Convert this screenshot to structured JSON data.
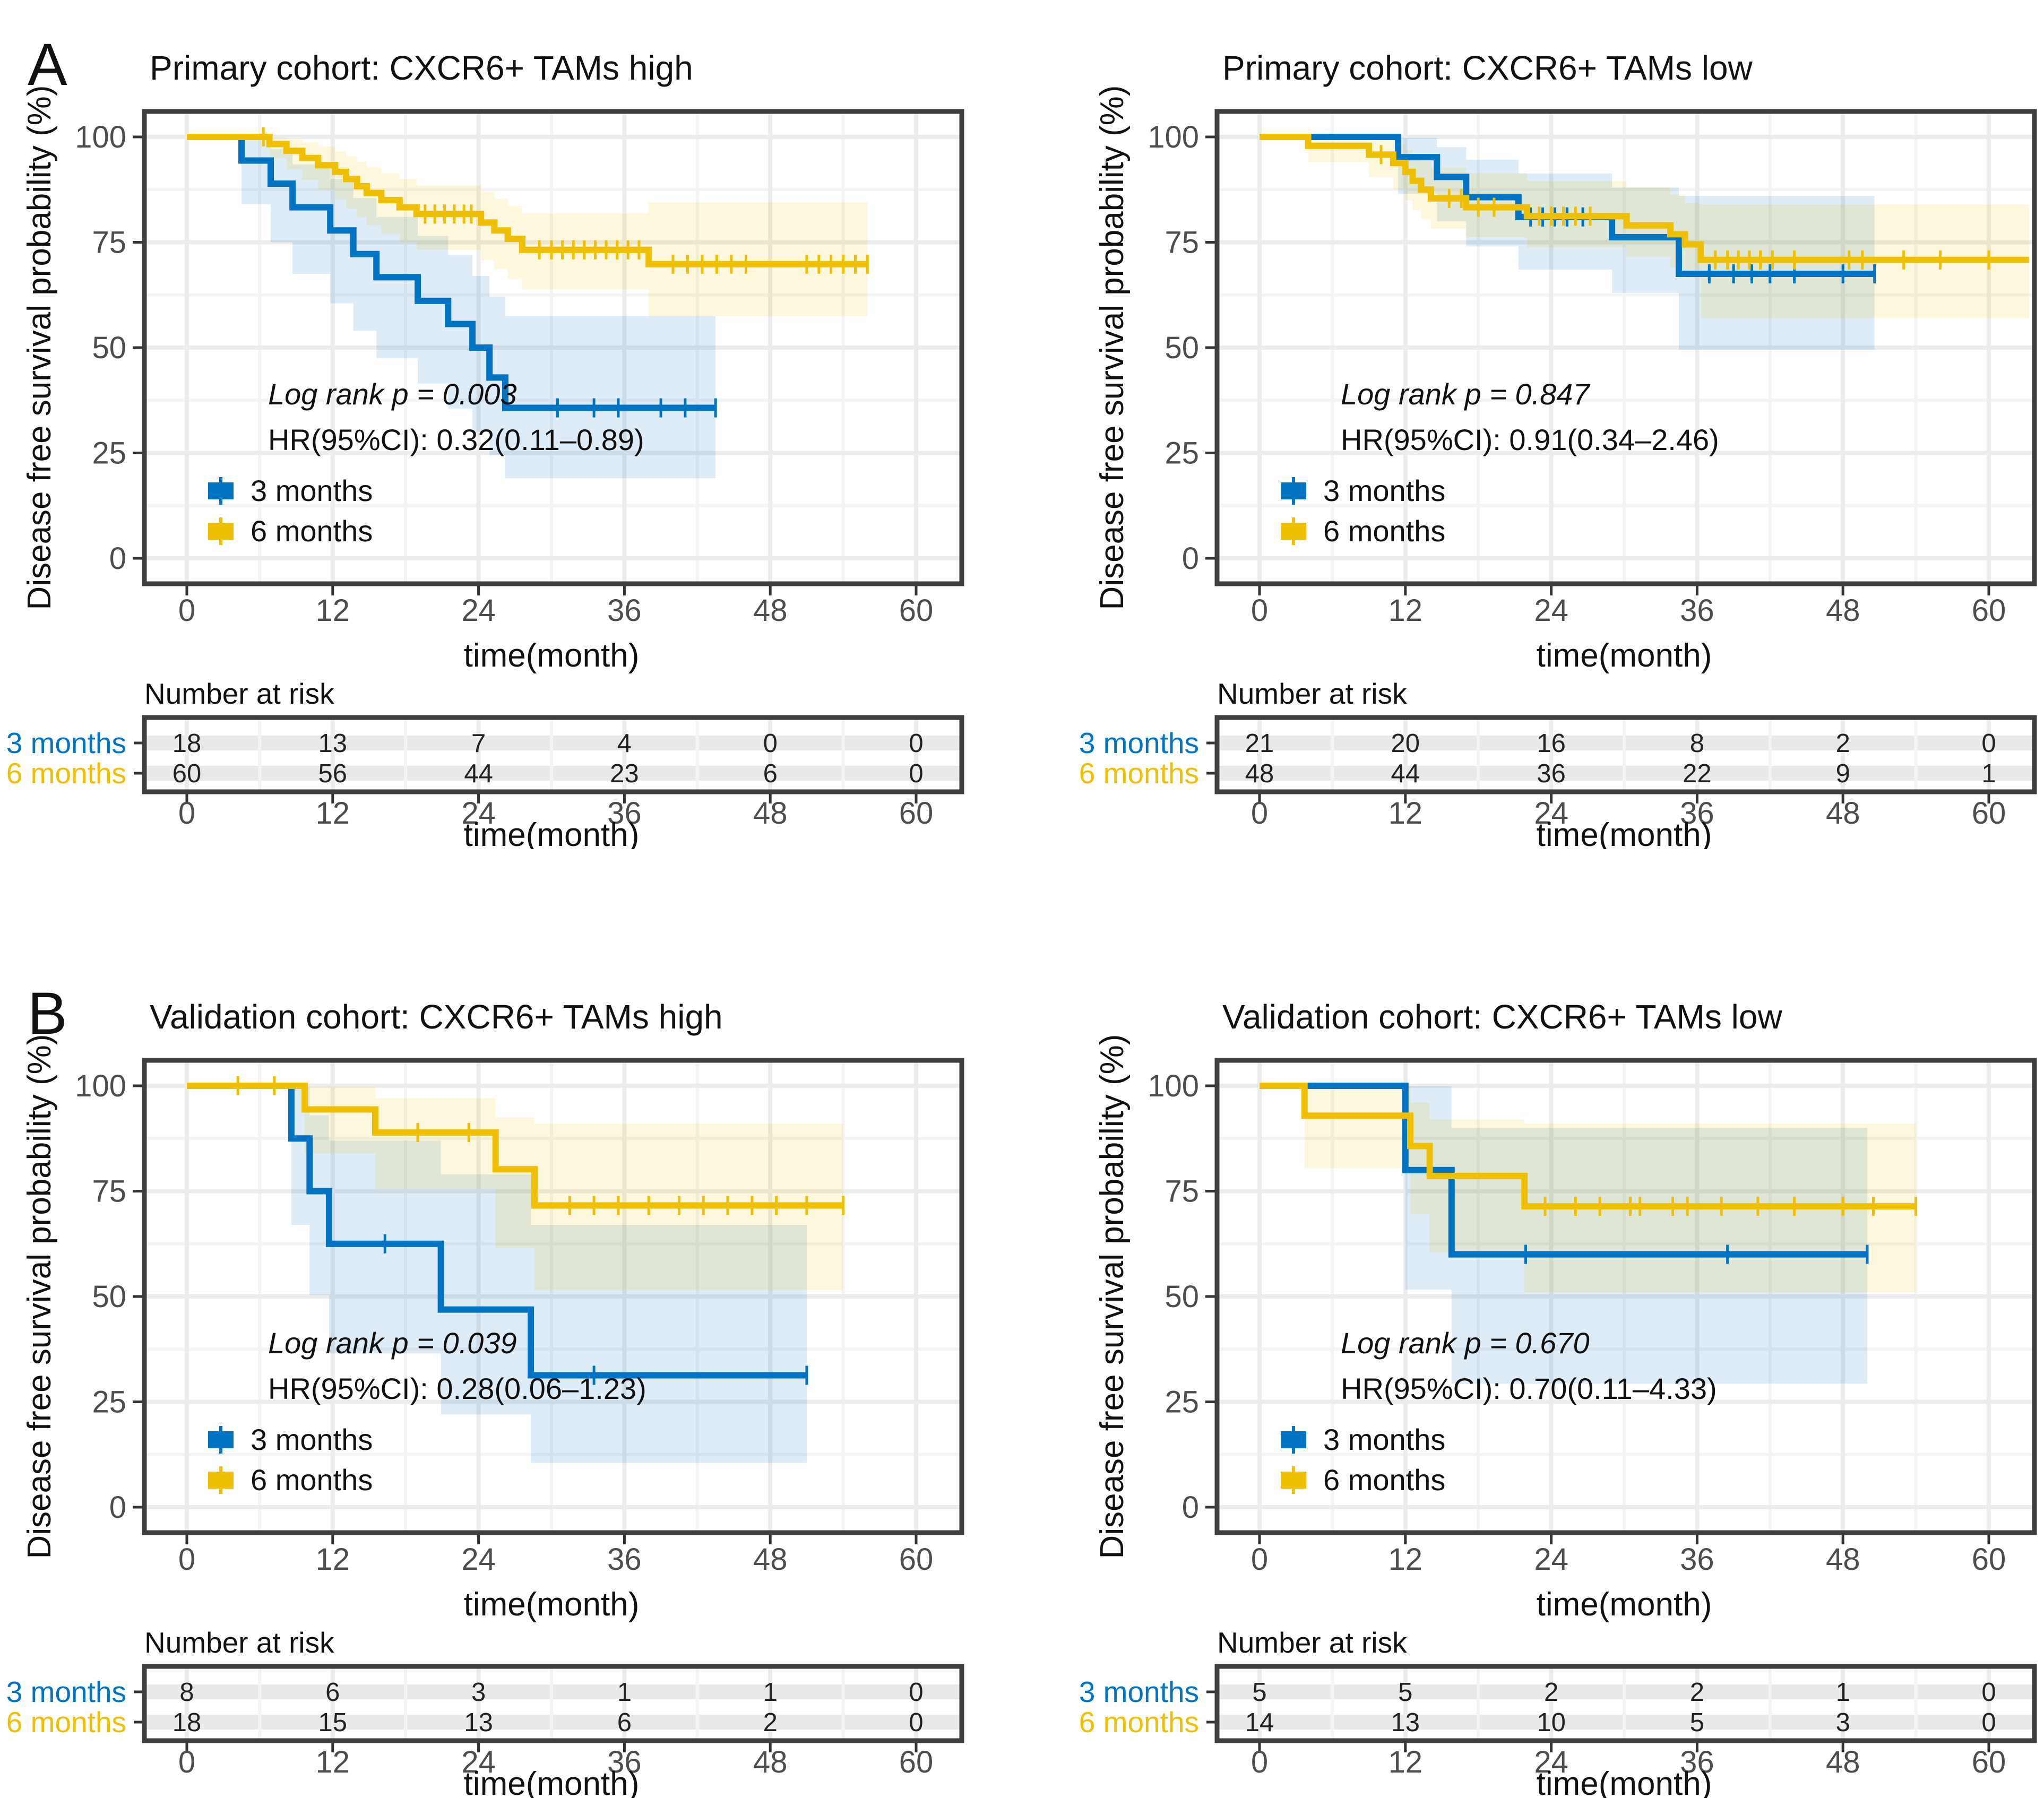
{
  "figure": {
    "ylabel": "Disease free survival probability (%)",
    "xlabel": "time(month)",
    "risk_header": "Number at risk",
    "x_ticks": [
      0,
      12,
      24,
      36,
      48,
      60
    ],
    "y_ticks": [
      0,
      25,
      50,
      75,
      100
    ],
    "colors": {
      "group_3_months": "#0073C2",
      "group_6_months": "#EFC000",
      "grid_major": "#ECECEC",
      "grid_minor": "#F4F4F4",
      "panel_border": "#3F3F3F",
      "tick_mark": "#333333",
      "tick_text": "#4d4d4d",
      "risk_stripe": "#E9E9E9"
    }
  },
  "chart_data": [
    {
      "id": "primary-high",
      "type": "line",
      "panel_letter": "A",
      "title": "Primary cohort: CXCR6+ TAMs high",
      "annotations": {
        "log_rank": "Log rank p = 0.003",
        "hr": "HR(95%CI): 0.32(0.11–0.89)"
      },
      "xlim": [
        0,
        63.5
      ],
      "ylim": [
        0,
        100
      ],
      "series": [
        {
          "name": "3 months",
          "color": "#0073C2",
          "steps": [
            [
              0,
              100
            ],
            [
              4.5,
              94.4
            ],
            [
              6.9,
              88.9
            ],
            [
              8.7,
              83.3
            ],
            [
              11.8,
              77.8
            ],
            [
              13.7,
              72.2
            ],
            [
              15.6,
              66.7
            ],
            [
              19,
              61.1
            ],
            [
              21.5,
              55.6
            ],
            [
              23.5,
              50
            ],
            [
              24.9,
              42.9
            ],
            [
              26.2,
              35.7
            ],
            [
              43.5,
              35.7
            ]
          ],
          "censors": [
            30.5,
            33.5,
            35.5,
            39,
            41,
            43.5
          ],
          "ci": [
            [
              4.5,
              84,
              99.7
            ],
            [
              6.9,
              75,
              97.2
            ],
            [
              8.7,
              67.5,
              93.5
            ],
            [
              11.8,
              60.5,
              90
            ],
            [
              13.7,
              54,
              85.5
            ],
            [
              15.6,
              47.5,
              81
            ],
            [
              19,
              41.5,
              76.5
            ],
            [
              21.5,
              35.5,
              72
            ],
            [
              23.5,
              30,
              67
            ],
            [
              24.9,
              24.5,
              62
            ],
            [
              26.2,
              19,
              57.5
            ],
            [
              43.5,
              19,
              57.5
            ]
          ]
        },
        {
          "name": "6 months",
          "color": "#EFC000",
          "steps": [
            [
              0,
              100
            ],
            [
              6.8,
              98.3
            ],
            [
              8.2,
              96.7
            ],
            [
              9.5,
              95
            ],
            [
              10.8,
              93.3
            ],
            [
              12.2,
              91.7
            ],
            [
              13.1,
              90
            ],
            [
              14,
              88.3
            ],
            [
              14.8,
              86.7
            ],
            [
              16,
              85
            ],
            [
              17.5,
              83.3
            ],
            [
              18.9,
              81.7
            ],
            [
              24.2,
              79.7
            ],
            [
              25.3,
              77.8
            ],
            [
              26.4,
              75.8
            ],
            [
              27.6,
              73.2
            ],
            [
              38,
              69.8
            ],
            [
              56,
              69.8
            ]
          ],
          "censors": [
            6.3,
            19.6,
            20.4,
            21.2,
            22,
            22.8,
            23.4,
            29,
            30,
            30.9,
            31.8,
            32.7,
            33.6,
            34.5,
            35.4,
            36.3,
            37.2,
            40,
            41.2,
            42.4,
            43.6,
            44.8,
            46,
            51,
            52,
            53,
            54,
            55,
            56
          ],
          "ci": [
            [
              6.8,
              95,
              99.8
            ],
            [
              8.2,
              92.3,
              99.4
            ],
            [
              9.5,
              89.8,
              98.7
            ],
            [
              10.8,
              87.4,
              97.7
            ],
            [
              12.2,
              85.2,
              96.6
            ],
            [
              13.1,
              83,
              95.4
            ],
            [
              14,
              81,
              94.1
            ],
            [
              14.8,
              79,
              92.8
            ],
            [
              16,
              77,
              91.4
            ],
            [
              17.5,
              75,
              90
            ],
            [
              18.9,
              73.2,
              88.5
            ],
            [
              24.2,
              70.8,
              87
            ],
            [
              25.3,
              68.6,
              85.3
            ],
            [
              26.4,
              66.4,
              83.6
            ],
            [
              27.6,
              63.8,
              81.8
            ],
            [
              38,
              57.5,
              84.5
            ],
            [
              56,
              57.5,
              84.5
            ]
          ]
        }
      ],
      "risk_table": {
        "rows": [
          {
            "label": "3 months",
            "color": "#0073C2",
            "counts": [
              18,
              13,
              7,
              4,
              0,
              0
            ]
          },
          {
            "label": "6 months",
            "color": "#EFC000",
            "counts": [
              60,
              56,
              44,
              23,
              6,
              0
            ]
          }
        ]
      }
    },
    {
      "id": "primary-low",
      "type": "line",
      "panel_letter": null,
      "title": "Primary cohort: CXCR6+ TAMs low",
      "annotations": {
        "log_rank": "Log rank p = 0.847",
        "hr": "HR(95%CI): 0.91(0.34–2.46)"
      },
      "xlim": [
        0,
        63.5
      ],
      "ylim": [
        0,
        100
      ],
      "series": [
        {
          "name": "3 months",
          "color": "#0073C2",
          "steps": [
            [
              0,
              100
            ],
            [
              11.4,
              95.2
            ],
            [
              14.6,
              90.5
            ],
            [
              17,
              85.7
            ],
            [
              21.3,
              81
            ],
            [
              29,
              76.2
            ],
            [
              34.5,
              67.5
            ],
            [
              50.6,
              67.5
            ]
          ],
          "censors": [
            22.3,
            23.3,
            24.3,
            25.3,
            26.6,
            37,
            39,
            40.5,
            42,
            44,
            48,
            50.6
          ],
          "ci": [
            [
              11.4,
              86.5,
              99.8
            ],
            [
              14.6,
              80,
              97.6
            ],
            [
              17,
              74,
              94.6
            ],
            [
              21.3,
              68.5,
              91.3
            ],
            [
              29,
              63,
              88
            ],
            [
              34.5,
              49.5,
              86
            ],
            [
              50.6,
              49.5,
              86
            ]
          ]
        },
        {
          "name": "6 months",
          "color": "#EFC000",
          "steps": [
            [
              0,
              100
            ],
            [
              4,
              97.9
            ],
            [
              9,
              95.8
            ],
            [
              11,
              93.8
            ],
            [
              12,
              91.7
            ],
            [
              12.6,
              89.6
            ],
            [
              13.3,
              87.5
            ],
            [
              14.1,
              85.4
            ],
            [
              17,
              83.3
            ],
            [
              22,
              81.2
            ],
            [
              30.2,
              79
            ],
            [
              33.8,
              76.9
            ],
            [
              35,
              74.5
            ],
            [
              36.3,
              70.8
            ],
            [
              63.3,
              70.8
            ]
          ],
          "censors": [
            10,
            15.6,
            16.6,
            18,
            19.3,
            23,
            24,
            25,
            26,
            27.2,
            37.5,
            38.5,
            39.4,
            40.3,
            41.2,
            42.2,
            44,
            48.5,
            49.6,
            53,
            56,
            60
          ],
          "ci": [
            [
              4,
              94,
              99.9
            ],
            [
              9,
              90.5,
              99.2
            ],
            [
              11,
              87.5,
              98.2
            ],
            [
              12,
              85,
              96.9
            ],
            [
              12.6,
              82.7,
              95.5
            ],
            [
              13.3,
              80.5,
              94.2
            ],
            [
              14.1,
              78.3,
              92.8
            ],
            [
              17,
              76.2,
              91.4
            ],
            [
              22,
              73.8,
              89.5
            ],
            [
              30.2,
              71.5,
              88
            ],
            [
              33.8,
              69,
              86.3
            ],
            [
              35,
              66.5,
              84.3
            ],
            [
              36.3,
              57,
              84
            ],
            [
              63.3,
              57,
              84
            ]
          ]
        }
      ],
      "risk_table": {
        "rows": [
          {
            "label": "3 months",
            "color": "#0073C2",
            "counts": [
              21,
              20,
              16,
              8,
              2,
              0
            ]
          },
          {
            "label": "6 months",
            "color": "#EFC000",
            "counts": [
              48,
              44,
              36,
              22,
              9,
              1
            ]
          }
        ]
      }
    },
    {
      "id": "validation-high",
      "type": "line",
      "panel_letter": "B",
      "title": "Validation cohort: CXCR6+ TAMs high",
      "annotations": {
        "log_rank": "Log rank p = 0.039",
        "hr": "HR(95%CI): 0.28(0.06–1.23)"
      },
      "xlim": [
        0,
        63.5
      ],
      "ylim": [
        0,
        100
      ],
      "series": [
        {
          "name": "3 months",
          "color": "#0073C2",
          "steps": [
            [
              0,
              100
            ],
            [
              8.6,
              87.5
            ],
            [
              10.1,
              75
            ],
            [
              11.7,
              62.5
            ],
            [
              20.9,
              46.9
            ],
            [
              28.3,
              31.3
            ],
            [
              51,
              31.3
            ]
          ],
          "censors": [
            16.3,
            33.5,
            51
          ],
          "ci": [
            [
              8.6,
              67,
              99.6
            ],
            [
              10.1,
              50.3,
              93
            ],
            [
              11.7,
              36.5,
              87
            ],
            [
              20.9,
              22,
              79
            ],
            [
              28.3,
              10.5,
              67
            ],
            [
              51,
              10.5,
              67
            ]
          ]
        },
        {
          "name": "6 months",
          "color": "#EFC000",
          "steps": [
            [
              0,
              100
            ],
            [
              9.7,
              94.4
            ],
            [
              15.5,
              88.9
            ],
            [
              25.4,
              80.2
            ],
            [
              28.6,
              71.6
            ],
            [
              54,
              71.6
            ]
          ],
          "censors": [
            4.2,
            7.2,
            19,
            23.2,
            31.5,
            33.5,
            35.5,
            38,
            40.5,
            42.5,
            44.5,
            46.5,
            48.5,
            51,
            54
          ],
          "ci": [
            [
              9.7,
              84,
              99.9
            ],
            [
              15.5,
              75.5,
              97
            ],
            [
              25.4,
              61.5,
              92.5
            ],
            [
              28.6,
              51.5,
              91
            ],
            [
              54,
              51.5,
              91
            ]
          ]
        }
      ],
      "risk_table": {
        "rows": [
          {
            "label": "3 months",
            "color": "#0073C2",
            "counts": [
              8,
              6,
              3,
              1,
              1,
              0
            ]
          },
          {
            "label": "6 months",
            "color": "#EFC000",
            "counts": [
              18,
              15,
              13,
              6,
              2,
              0
            ]
          }
        ]
      }
    },
    {
      "id": "validation-low",
      "type": "line",
      "panel_letter": null,
      "title": "Validation cohort: CXCR6+ TAMs low",
      "annotations": {
        "log_rank": "Log rank p = 0.670",
        "hr": "HR(95%CI): 0.70(0.11–4.33)"
      },
      "xlim": [
        0,
        63.5
      ],
      "ylim": [
        0,
        100
      ],
      "series": [
        {
          "name": "3 months",
          "color": "#0073C2",
          "steps": [
            [
              0,
              100
            ],
            [
              12,
              80
            ],
            [
              15.8,
              60
            ],
            [
              50,
              60
            ]
          ],
          "censors": [
            21.9,
            38.5,
            50
          ],
          "ci": [
            [
              12,
              51.6,
              99.9
            ],
            [
              15.8,
              29.3,
              90
            ],
            [
              50,
              29.3,
              90
            ]
          ]
        },
        {
          "name": "6 months",
          "color": "#EFC000",
          "steps": [
            [
              0,
              100
            ],
            [
              3.7,
              92.9
            ],
            [
              12.4,
              85.7
            ],
            [
              14,
              78.6
            ],
            [
              21.8,
              71.4
            ],
            [
              54,
              71.4
            ]
          ],
          "censors": [
            23.5,
            26,
            28,
            30.5,
            31.3,
            34,
            35.2,
            38,
            41,
            44,
            48,
            50.5,
            54
          ],
          "ci": [
            [
              3.7,
              80.5,
              99.9
            ],
            [
              12.4,
              69.5,
              96
            ],
            [
              14,
              60.5,
              92
            ],
            [
              21.8,
              51,
              91
            ],
            [
              54,
              51,
              91
            ]
          ]
        }
      ],
      "risk_table": {
        "rows": [
          {
            "label": "3 months",
            "color": "#0073C2",
            "counts": [
              5,
              5,
              2,
              2,
              1,
              0
            ]
          },
          {
            "label": "6 months",
            "color": "#EFC000",
            "counts": [
              14,
              13,
              10,
              5,
              3,
              0
            ]
          }
        ]
      }
    }
  ]
}
